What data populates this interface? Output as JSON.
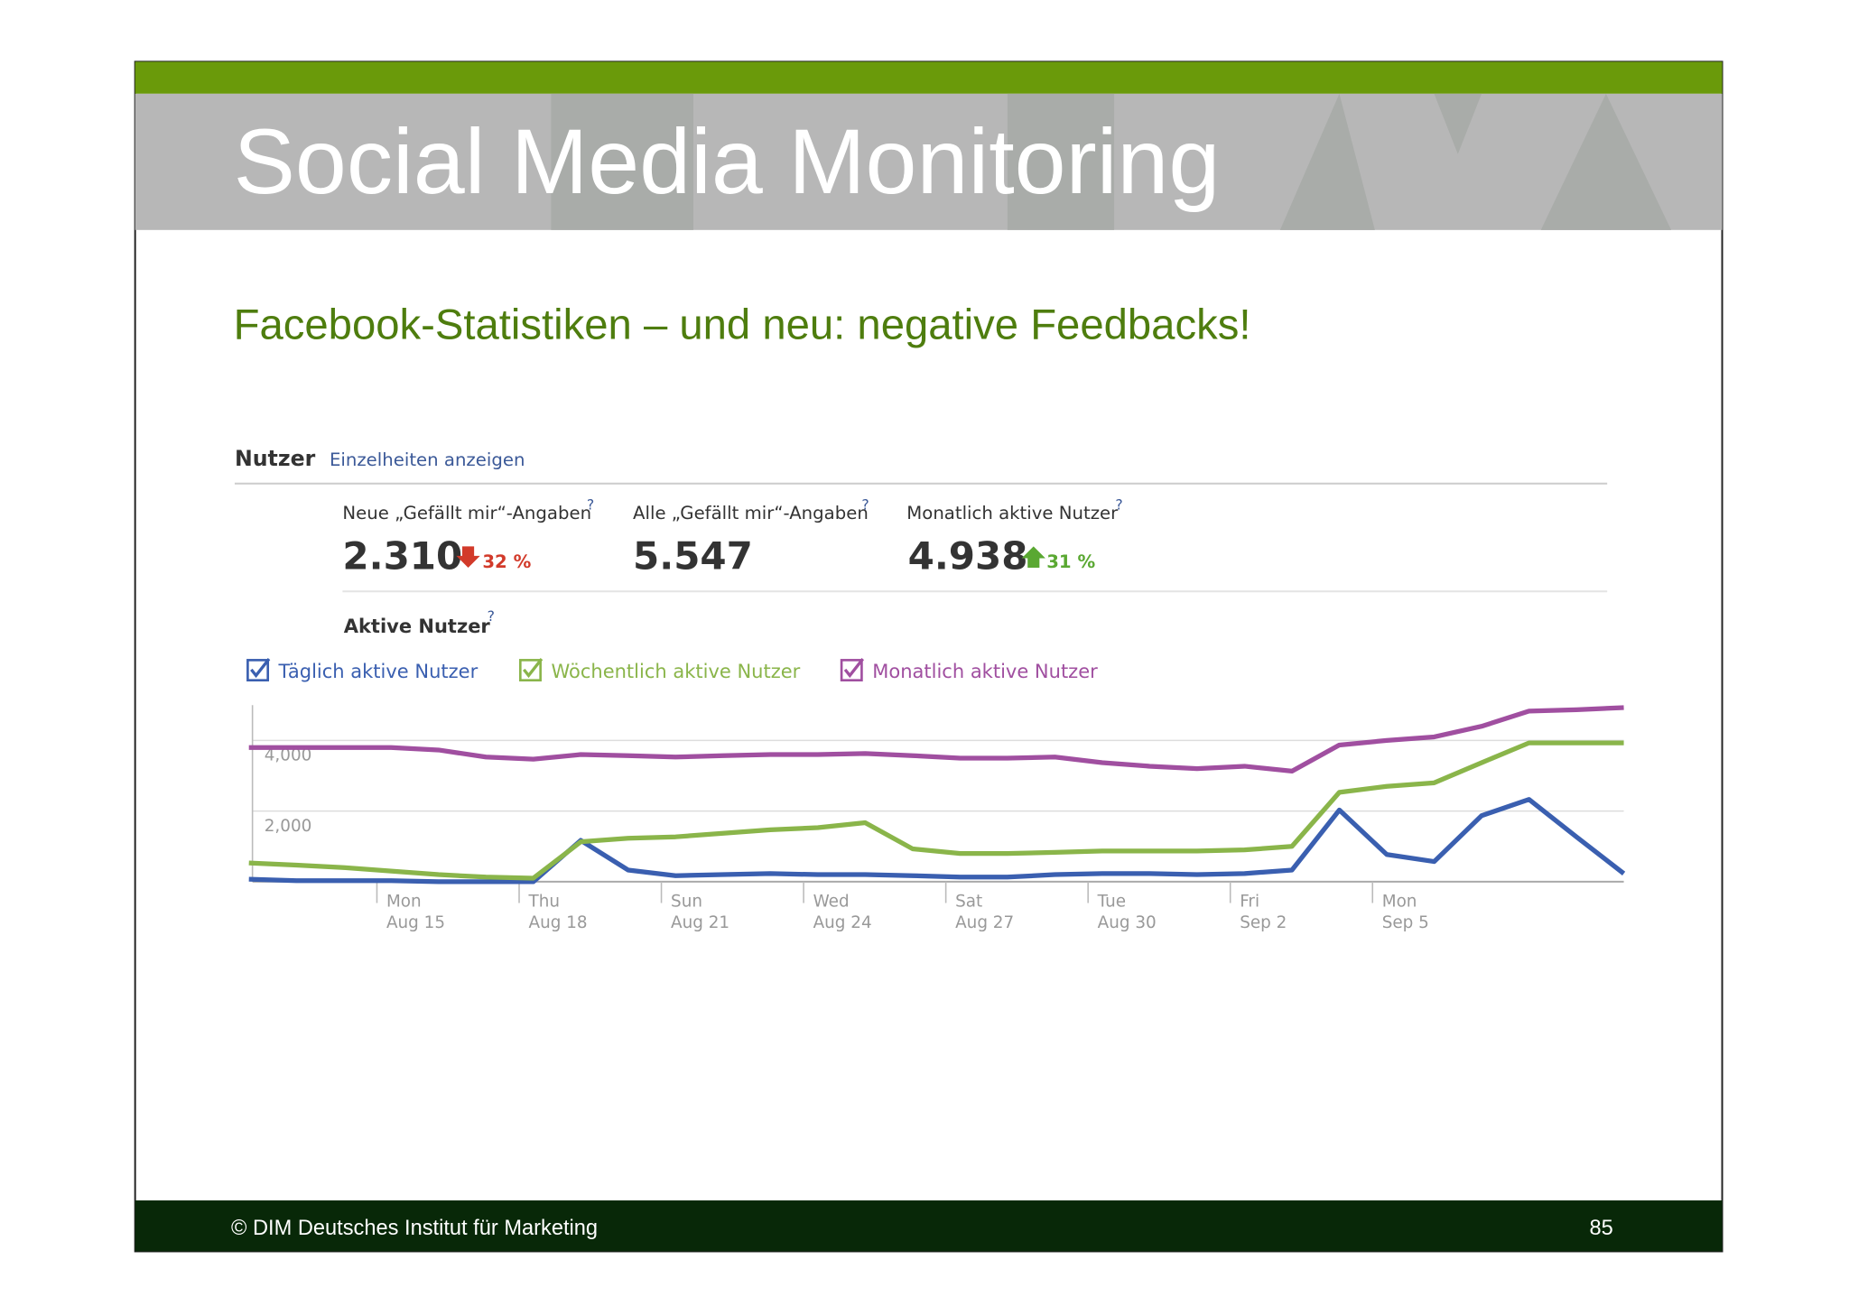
{
  "header": {
    "title": "Social Media Monitoring"
  },
  "subtitle": "Facebook-Statistiken – und neu: negative Feedbacks!",
  "panel": {
    "title": "Nutzer",
    "link": "Einzelheiten anzeigen",
    "help_mark": "?",
    "stats": [
      {
        "label": "Neue „Gefällt mir“-Angaben",
        "value": "2.310",
        "change": "32 %"
      },
      {
        "label": "Alle „Gefällt mir“-Angaben",
        "value": "5.547"
      },
      {
        "label": "Monatlich aktive Nutzer",
        "value": "4.938",
        "change": "31 %"
      }
    ],
    "section": "Aktive Nutzer"
  },
  "chart_data": {
    "type": "line",
    "categories": [
      null,
      null,
      null,
      {
        "day": "Mon",
        "date": "Aug 15"
      },
      null,
      null,
      {
        "day": "Thu",
        "date": "Aug 18"
      },
      null,
      null,
      {
        "day": "Sun",
        "date": "Aug 21"
      },
      null,
      null,
      {
        "day": "Wed",
        "date": "Aug 24"
      },
      null,
      null,
      {
        "day": "Sat",
        "date": "Aug 27"
      },
      null,
      null,
      {
        "day": "Tue",
        "date": "Aug 30"
      },
      null,
      null,
      {
        "day": "Fri",
        "date": "Sep 2"
      },
      null,
      null,
      {
        "day": "Mon",
        "date": "Sep 5"
      },
      null,
      null,
      null,
      null,
      null
    ],
    "series": [
      {
        "name": "Täglich aktive Nutzer",
        "color": "#3a5fb0",
        "values": [
          70,
          30,
          30,
          30,
          0,
          0,
          0,
          1170,
          330,
          170,
          200,
          230,
          200,
          200,
          170,
          130,
          130,
          200,
          230,
          230,
          200,
          230,
          330,
          2030,
          770,
          570,
          1870,
          2330,
          1270,
          230
        ]
      },
      {
        "name": "Wöchentlich aktive Nutzer",
        "color": "#8ab54a",
        "values": [
          530,
          470,
          400,
          300,
          200,
          130,
          100,
          1130,
          1230,
          1270,
          1370,
          1470,
          1530,
          1670,
          930,
          800,
          800,
          830,
          870,
          870,
          870,
          900,
          1000,
          2530,
          2700,
          2800,
          3370,
          3930,
          3930,
          3930
        ]
      },
      {
        "name": "Monatlich aktive Nutzer",
        "color": "#a04fa0",
        "values": [
          3800,
          3800,
          3800,
          3800,
          3730,
          3530,
          3470,
          3600,
          3570,
          3530,
          3570,
          3600,
          3600,
          3630,
          3570,
          3500,
          3500,
          3530,
          3370,
          3270,
          3200,
          3270,
          3130,
          3870,
          4000,
          4100,
          4400,
          4830,
          4870,
          4930
        ]
      }
    ],
    "ylim": [
      0,
      5000
    ],
    "yticks": [
      {
        "value": 2000,
        "label": "2,000"
      },
      {
        "value": 4000,
        "label": "4,000"
      }
    ],
    "grid": true
  },
  "footer": {
    "copyright": "© DIM Deutsches Institut für Marketing",
    "page": "85"
  }
}
